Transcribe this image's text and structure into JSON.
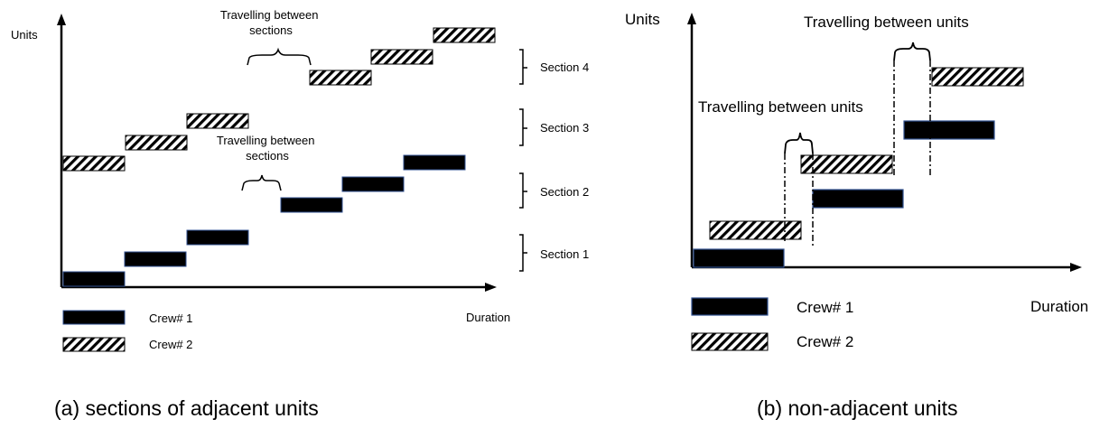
{
  "panel_a": {
    "y_axis_label": "Units",
    "x_axis_label": "Duration",
    "annotation_sections_a": "Travelling between\nsections",
    "annotation_sections_b": "Travelling between\nsections",
    "section_labels": [
      "Section 1",
      "Section 2",
      "Section 3",
      "Section 4"
    ],
    "legend": {
      "crew1": "Crew# 1",
      "crew2": "Crew# 2"
    },
    "caption": "(a) sections of adjacent units"
  },
  "panel_b": {
    "y_axis_label": "Units",
    "x_axis_label": "Duration",
    "annotation_units_top": "Travelling between units",
    "annotation_units_mid": "Travelling between units",
    "legend": {
      "crew1": "Crew# 1",
      "crew2": "Crew# 2"
    },
    "caption": "(b) non-adjacent units"
  },
  "colors": {
    "crew1_fill": "#000000",
    "crew1_edge": "#2f4f8f",
    "crew2_hatch": "#000000"
  }
}
